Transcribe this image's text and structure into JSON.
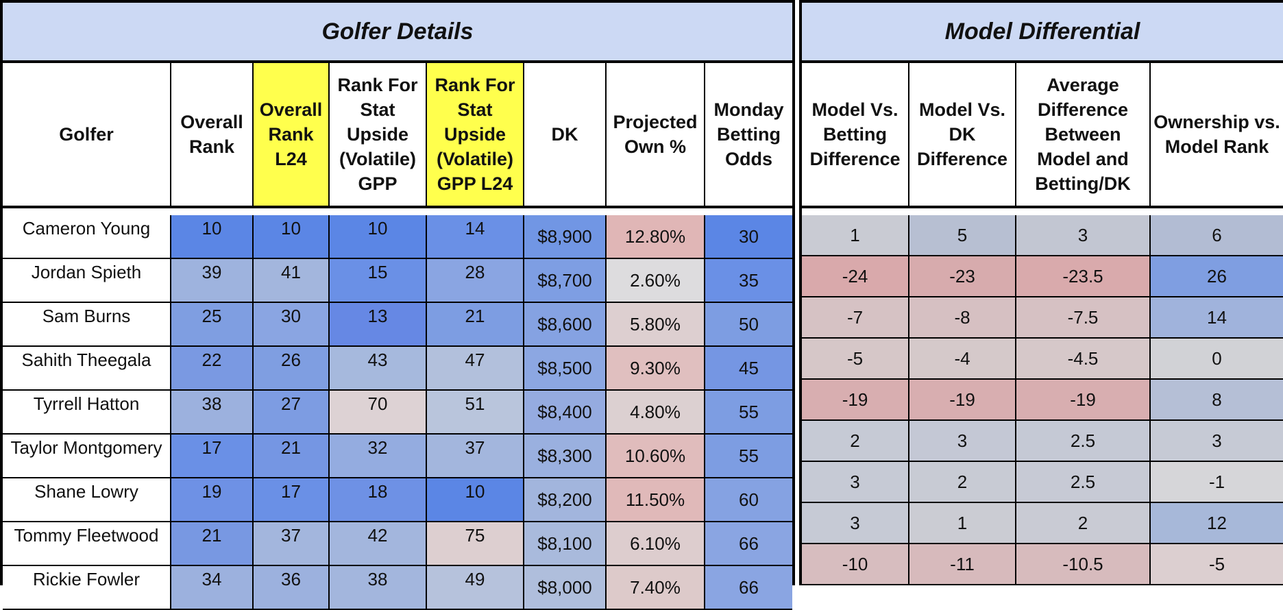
{
  "sections": {
    "golfer_details": "Golfer Details",
    "model_differential": "Model Differential"
  },
  "headers": {
    "golfer": "Golfer",
    "overall_rank": "Overall Rank",
    "overall_rank_l24": "Overall Rank L24",
    "stat_upside_gpp": "Rank For Stat Upside (Volatile) GPP",
    "stat_upside_gpp_l24": "Rank For Stat Upside (Volatile) GPP L24",
    "dk": "DK",
    "projected_own": "Projected Own %",
    "monday_odds": "Monday Betting Odds",
    "model_vs_betting": "Model Vs. Betting Difference",
    "model_vs_dk": "Model Vs. DK Difference",
    "avg_diff": "Average Difference Between Model and Betting/DK",
    "ownership_vs_model": "Ownership vs. Model Rank"
  },
  "highlight_color": "#ffff4d",
  "rows": [
    {
      "golfer": "Cameron Young",
      "overall": "10",
      "overall_l24": "10",
      "upside": "10",
      "upside_l24": "14",
      "dk": "$8,900",
      "own": "12.80%",
      "odds": "30",
      "mvb": "1",
      "mvd": "5",
      "avg": "3",
      "ovm": "6"
    },
    {
      "golfer": "Jordan Spieth",
      "overall": "39",
      "overall_l24": "41",
      "upside": "15",
      "upside_l24": "28",
      "dk": "$8,700",
      "own": "2.60%",
      "odds": "35",
      "mvb": "-24",
      "mvd": "-23",
      "avg": "-23.5",
      "ovm": "26"
    },
    {
      "golfer": "Sam Burns",
      "overall": "25",
      "overall_l24": "30",
      "upside": "13",
      "upside_l24": "21",
      "dk": "$8,600",
      "own": "5.80%",
      "odds": "50",
      "mvb": "-7",
      "mvd": "-8",
      "avg": "-7.5",
      "ovm": "14"
    },
    {
      "golfer": "Sahith Theegala",
      "overall": "22",
      "overall_l24": "26",
      "upside": "43",
      "upside_l24": "47",
      "dk": "$8,500",
      "own": "9.30%",
      "odds": "45",
      "mvb": "-5",
      "mvd": "-4",
      "avg": "-4.5",
      "ovm": "0"
    },
    {
      "golfer": "Tyrrell Hatton",
      "overall": "38",
      "overall_l24": "27",
      "upside": "70",
      "upside_l24": "51",
      "dk": "$8,400",
      "own": "4.80%",
      "odds": "55",
      "mvb": "-19",
      "mvd": "-19",
      "avg": "-19",
      "ovm": "8"
    },
    {
      "golfer": "Taylor Montgomery",
      "overall": "17",
      "overall_l24": "21",
      "upside": "32",
      "upside_l24": "37",
      "dk": "$8,300",
      "own": "10.60%",
      "odds": "55",
      "mvb": "2",
      "mvd": "3",
      "avg": "2.5",
      "ovm": "3"
    },
    {
      "golfer": "Shane Lowry",
      "overall": "19",
      "overall_l24": "17",
      "upside": "18",
      "upside_l24": "10",
      "dk": "$8,200",
      "own": "11.50%",
      "odds": "60",
      "mvb": "3",
      "mvd": "2",
      "avg": "2.5",
      "ovm": "-1"
    },
    {
      "golfer": "Tommy Fleetwood",
      "overall": "21",
      "overall_l24": "37",
      "upside": "42",
      "upside_l24": "75",
      "dk": "$8,100",
      "own": "6.10%",
      "odds": "66",
      "mvb": "3",
      "mvd": "1",
      "avg": "2",
      "ovm": "12"
    },
    {
      "golfer": "Rickie Fowler",
      "overall": "34",
      "overall_l24": "36",
      "upside": "38",
      "upside_l24": "49",
      "dk": "$8,000",
      "own": "7.40%",
      "odds": "66",
      "mvb": "-10",
      "mvd": "-11",
      "avg": "-10.5",
      "ovm": "-5"
    }
  ],
  "cell_colors": [
    {
      "overall": "#5b86e5",
      "overall_l24": "#5b86e5",
      "upside": "#5b86e5",
      "upside_l24": "#6a90e6",
      "dk": "#7196e4",
      "own": "#e0b6b6",
      "odds": "#5b86e5",
      "mvb": "#c9cbd3",
      "mvd": "#b7bfd2",
      "avg": "#c2c6d2",
      "ovm": "#b2bcd3"
    },
    {
      "overall": "#9eb3de",
      "overall_l24": "#a3b6dd",
      "upside": "#6a90e6",
      "upside_l24": "#8aa5e2",
      "dk": "#7e9ee3",
      "own": "#dddcde",
      "odds": "#6a90e6",
      "mvb": "#d9a9ab",
      "mvd": "#d7abad",
      "avg": "#d9aaac",
      "ovm": "#7f9ee1"
    },
    {
      "overall": "#7f9ee1",
      "overall_l24": "#8aa5e2",
      "upside": "#6688e4",
      "upside_l24": "#7d9de2",
      "dk": "#85a2e2",
      "own": "#ddcfd0",
      "odds": "#7d9de2",
      "mvb": "#d6c2c4",
      "mvd": "#d6c0c2",
      "avg": "#d6c1c3",
      "ovm": "#a0b3dc"
    },
    {
      "overall": "#7a99e2",
      "overall_l24": "#7f9ee1",
      "upside": "#a6b9dd",
      "upside_l24": "#b2c0dc",
      "dk": "#8ca7e2",
      "own": "#e0bfbf",
      "odds": "#7596e3",
      "mvb": "#d6c7c8",
      "mvd": "#d5c9ca",
      "avg": "#d6c8c9",
      "ovm": "#d1d2d6"
    },
    {
      "overall": "#9cb1de",
      "overall_l24": "#7d9ce2",
      "upside": "#ddd2d4",
      "upside_l24": "#b9c5dc",
      "dk": "#95abe0",
      "own": "#dcd0d1",
      "odds": "#7d9de2",
      "mvb": "#d8aeb0",
      "mvd": "#d8aeb0",
      "avg": "#d8aeb0",
      "ovm": "#b5bfd6"
    },
    {
      "overall": "#6a90e6",
      "overall_l24": "#7596e3",
      "upside": "#94ace0",
      "upside_l24": "#a3b6dd",
      "dk": "#9ab0df",
      "own": "#e0bcbc",
      "odds": "#7d9de2",
      "mvb": "#c6cad5",
      "mvd": "#c4c8d5",
      "avg": "#c5c9d5",
      "ovm": "#c6cad5"
    },
    {
      "overall": "#6e91e5",
      "overall_l24": "#6a90e6",
      "upside": "#6e91e5",
      "upside_l24": "#5b86e5",
      "dk": "#a2b5dd",
      "own": "#e0b9b9",
      "odds": "#85a2e2",
      "mvb": "#c6cad5",
      "mvd": "#c8cbd4",
      "avg": "#c7cad5",
      "ovm": "#d6d6d9"
    },
    {
      "overall": "#7898e2",
      "overall_l24": "#a3b6dd",
      "upside": "#a3b6dd",
      "upside_l24": "#ddcfd0",
      "dk": "#a9badc",
      "own": "#ddcdce",
      "odds": "#8aa5e2",
      "mvb": "#c6cad5",
      "mvd": "#cbccd3",
      "avg": "#c9cbd4",
      "ovm": "#a7b8d9"
    },
    {
      "overall": "#9cb1de",
      "overall_l24": "#9cb1de",
      "upside": "#a3b6dd",
      "upside_l24": "#b6c2dc",
      "dk": "#afbedc",
      "own": "#ddcaca",
      "odds": "#8aa5e2",
      "mvb": "#d7bdbf",
      "mvd": "#d7babc",
      "avg": "#d7bbbd",
      "ovm": "#dccfd0"
    }
  ]
}
